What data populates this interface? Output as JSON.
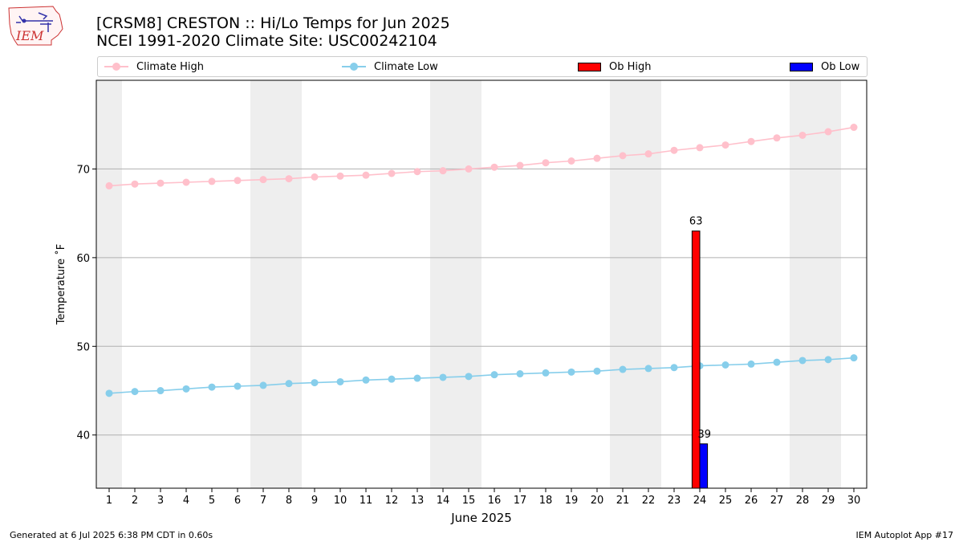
{
  "logo": {
    "text": "IEM"
  },
  "header": {
    "title": "[CRSM8] CRESTON :: Hi/Lo Temps for Jun 2025",
    "subtitle": "NCEI 1991-2020 Climate Site: USC00242104"
  },
  "legend": {
    "climate_high": "Climate High",
    "climate_low": "Climate Low",
    "ob_high": "Ob High",
    "ob_low": "Ob Low"
  },
  "colors": {
    "climate_high": "#ffc0cb",
    "climate_low": "#87ceeb",
    "ob_high": "#ff0000",
    "ob_low": "#0000ff",
    "weekend_band": "#eeeeee",
    "grid": "#b0b0b0"
  },
  "chart_data": {
    "type": "line",
    "xlabel": "June 2025",
    "ylabel": "Temperature ˚F",
    "x": [
      1,
      2,
      3,
      4,
      5,
      6,
      7,
      8,
      9,
      10,
      11,
      12,
      13,
      14,
      15,
      16,
      17,
      18,
      19,
      20,
      21,
      22,
      23,
      24,
      25,
      26,
      27,
      28,
      29,
      30
    ],
    "xlim": [
      0.5,
      30.5
    ],
    "ylim": [
      34,
      80
    ],
    "yticks": [
      40,
      50,
      60,
      70
    ],
    "grid": true,
    "legend_placement": "top",
    "weekend_days": [
      1,
      7,
      8,
      14,
      15,
      21,
      22,
      28,
      29
    ],
    "series": [
      {
        "name": "Climate High",
        "style": "line-marker",
        "values": [
          68.1,
          68.3,
          68.4,
          68.5,
          68.6,
          68.7,
          68.8,
          68.9,
          69.1,
          69.2,
          69.3,
          69.5,
          69.7,
          69.8,
          70.0,
          70.2,
          70.4,
          70.7,
          70.9,
          71.2,
          71.5,
          71.7,
          72.1,
          72.4,
          72.7,
          73.1,
          73.5,
          73.8,
          74.2,
          74.7
        ]
      },
      {
        "name": "Climate Low",
        "style": "line-marker",
        "values": [
          44.7,
          44.9,
          45.0,
          45.2,
          45.4,
          45.5,
          45.6,
          45.8,
          45.9,
          46.0,
          46.2,
          46.3,
          46.4,
          46.5,
          46.6,
          46.8,
          46.9,
          47.0,
          47.1,
          47.2,
          47.4,
          47.5,
          47.6,
          47.8,
          47.9,
          48.0,
          48.2,
          48.4,
          48.5,
          48.7
        ]
      },
      {
        "name": "Ob High",
        "style": "bar",
        "points": [
          {
            "day": 24,
            "value": 63
          }
        ]
      },
      {
        "name": "Ob Low",
        "style": "bar",
        "points": [
          {
            "day": 24,
            "value": 39
          }
        ]
      }
    ]
  },
  "footer": {
    "left": "Generated at 6 Jul 2025 6:38 PM CDT in 0.60s",
    "right": "IEM Autoplot App #17"
  }
}
